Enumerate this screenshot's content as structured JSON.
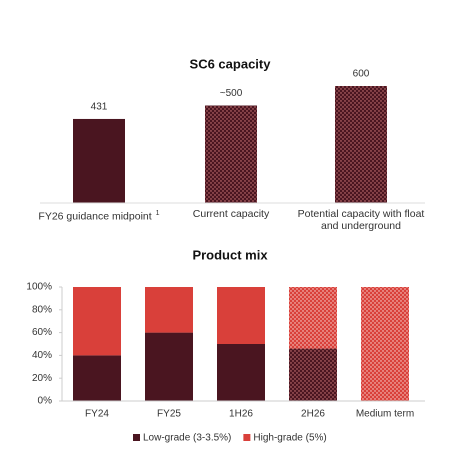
{
  "chart_data": [
    {
      "type": "bar",
      "title": "SC6 capacity",
      "categories": [
        "FY26 guidance midpoint",
        "Current capacity",
        "Potential capacity with float and underground"
      ],
      "category_notes": [
        "1",
        null,
        null
      ],
      "values": [
        431,
        500,
        600
      ],
      "value_labels": [
        "431",
        "~500",
        "600"
      ],
      "patterned": [
        false,
        true,
        true
      ],
      "color": "#4a1520"
    },
    {
      "type": "stacked_bar",
      "title": "Product mix",
      "categories": [
        "FY24",
        "FY25",
        "1H26",
        "2H26",
        "Medium term"
      ],
      "patterned": [
        false,
        false,
        false,
        true,
        true
      ],
      "series": [
        {
          "name": "Low-grade (3-3.5%)",
          "color": "#4a1520",
          "values": [
            40,
            60,
            50,
            46,
            0
          ]
        },
        {
          "name": "High-grade (5%)",
          "color": "#d9403a",
          "values": [
            60,
            40,
            50,
            54,
            100
          ]
        }
      ],
      "ylim": [
        0,
        100
      ],
      "yticks": [
        {
          "value": 0,
          "label": "0%"
        },
        {
          "value": 20,
          "label": "20%"
        },
        {
          "value": 40,
          "label": "40%"
        },
        {
          "value": 60,
          "label": "60%"
        },
        {
          "value": 80,
          "label": "80%"
        },
        {
          "value": 100,
          "label": "100%"
        }
      ]
    }
  ]
}
